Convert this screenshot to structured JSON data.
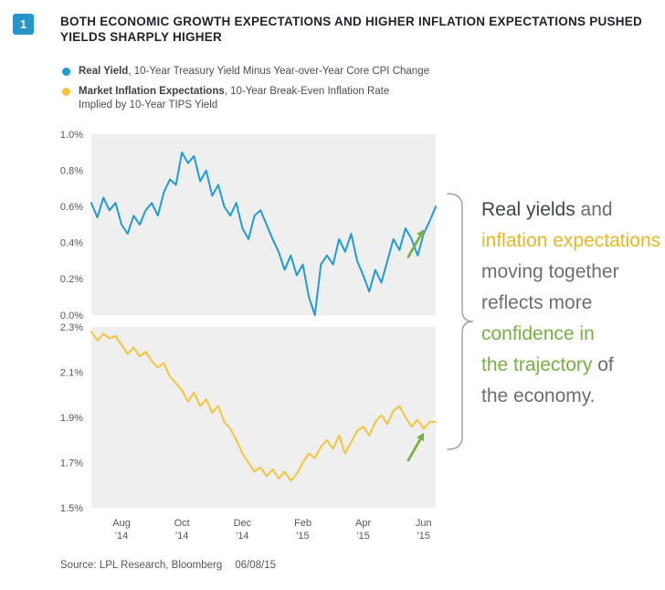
{
  "figure_number": "1",
  "title_lines": [
    "BOTH ECONOMIC GROWTH EXPECTATIONS AND HIGHER INFLATION EXPECTATIONS PUSHED",
    "YIELDS SHARPLY HIGHER"
  ],
  "legend": {
    "items": [
      {
        "bullet_color": "#1f9cd8",
        "name": "Real Yield",
        "desc": ", 10-Year Treasury Yield Minus Year-over-Year Core CPI Change",
        "desc2": ""
      },
      {
        "bullet_color": "#f3c53b",
        "name": "Market Inflation Expectations",
        "desc": ", 10-Year Break-Even Inflation Rate",
        "desc2": "Implied by 10-Year TIPS Yield"
      }
    ]
  },
  "colors": {
    "blue": "#1f9cd8",
    "yellow": "#e9b821",
    "green": "#77b043",
    "dark": "#3e474f",
    "gray": "#6d6e71",
    "panel": "#efefef"
  },
  "annotation": {
    "lines": [
      [
        {
          "t": "Real yields",
          "c": "dark"
        },
        {
          "t": " and",
          "c": "gray"
        }
      ],
      [
        {
          "t": "inflation expectations",
          "c": "yellow"
        }
      ],
      [
        {
          "t": "moving together",
          "c": "gray"
        }
      ],
      [
        {
          "t": "reflects more",
          "c": "gray"
        }
      ],
      [
        {
          "t": "confidence in",
          "c": "green"
        }
      ],
      [
        {
          "t": "the trajectory",
          "c": "green"
        },
        {
          "t": " of",
          "c": "gray"
        }
      ],
      [
        {
          "t": "the economy.",
          "c": "gray"
        }
      ]
    ]
  },
  "source": {
    "text": "Source: LPL Research, Bloomberg",
    "date": "06/08/15"
  },
  "chart_data": [
    {
      "type": "line",
      "name": "real-yield",
      "title": "Real Yield",
      "ylabel": "%",
      "ylim": [
        0.0,
        1.0
      ],
      "x_range": [
        "Jul '14",
        "Jun '15"
      ],
      "y_ticks": [
        {
          "v": 1.0,
          "label": "1.0%"
        },
        {
          "v": 0.8,
          "label": "0.8%"
        },
        {
          "v": 0.6,
          "label": "0.6%"
        },
        {
          "v": 0.4,
          "label": "0.4%"
        },
        {
          "v": 0.2,
          "label": "0.2%"
        },
        {
          "v": 0.0,
          "label": "0.0%"
        }
      ],
      "x_ticks": [],
      "series": [
        {
          "name": "Real Yield",
          "color": "#1f9cd8",
          "values": [
            0.62,
            0.54,
            0.65,
            0.58,
            0.62,
            0.5,
            0.45,
            0.55,
            0.5,
            0.58,
            0.62,
            0.55,
            0.68,
            0.75,
            0.72,
            0.9,
            0.84,
            0.88,
            0.74,
            0.8,
            0.66,
            0.72,
            0.6,
            0.55,
            0.62,
            0.48,
            0.42,
            0.55,
            0.58,
            0.5,
            0.42,
            0.35,
            0.25,
            0.33,
            0.22,
            0.28,
            0.1,
            0.0,
            0.28,
            0.33,
            0.28,
            0.42,
            0.35,
            0.45,
            0.3,
            0.22,
            0.13,
            0.25,
            0.18,
            0.3,
            0.42,
            0.36,
            0.48,
            0.42,
            0.33,
            0.45,
            0.52,
            0.6
          ]
        }
      ]
    },
    {
      "type": "line",
      "name": "inflation-expectations",
      "title": "Market Inflation Expectations",
      "ylabel": "%",
      "ylim": [
        1.5,
        2.3
      ],
      "x_range": [
        "Jul '14",
        "Jun '15"
      ],
      "y_ticks": [
        {
          "v": 2.3,
          "label": "2.3%"
        },
        {
          "v": 2.1,
          "label": "2.1%"
        },
        {
          "v": 1.9,
          "label": "1.9%"
        },
        {
          "v": 1.7,
          "label": "1.7%"
        },
        {
          "v": 1.5,
          "label": "1.5%"
        }
      ],
      "x_ticks": [
        {
          "idx": 5,
          "month": "Aug",
          "year": "'14"
        },
        {
          "idx": 15,
          "month": "Oct",
          "year": "'14"
        },
        {
          "idx": 25,
          "month": "Dec",
          "year": "'14"
        },
        {
          "idx": 35,
          "month": "Feb",
          "year": "'15"
        },
        {
          "idx": 45,
          "month": "Apr",
          "year": "'15"
        },
        {
          "idx": 55,
          "month": "Jun",
          "year": "'15"
        }
      ],
      "series": [
        {
          "name": "Market Inflation Expectations",
          "color": "#f3c53b",
          "values": [
            2.28,
            2.24,
            2.27,
            2.25,
            2.26,
            2.22,
            2.18,
            2.21,
            2.17,
            2.19,
            2.15,
            2.12,
            2.14,
            2.08,
            2.05,
            2.02,
            1.97,
            2.01,
            1.95,
            1.98,
            1.92,
            1.95,
            1.88,
            1.85,
            1.8,
            1.74,
            1.7,
            1.66,
            1.68,
            1.64,
            1.67,
            1.63,
            1.66,
            1.62,
            1.65,
            1.7,
            1.74,
            1.72,
            1.77,
            1.8,
            1.76,
            1.82,
            1.74,
            1.79,
            1.84,
            1.86,
            1.82,
            1.88,
            1.91,
            1.87,
            1.93,
            1.95,
            1.9,
            1.86,
            1.89,
            1.85,
            1.88,
            1.88
          ]
        }
      ]
    }
  ]
}
